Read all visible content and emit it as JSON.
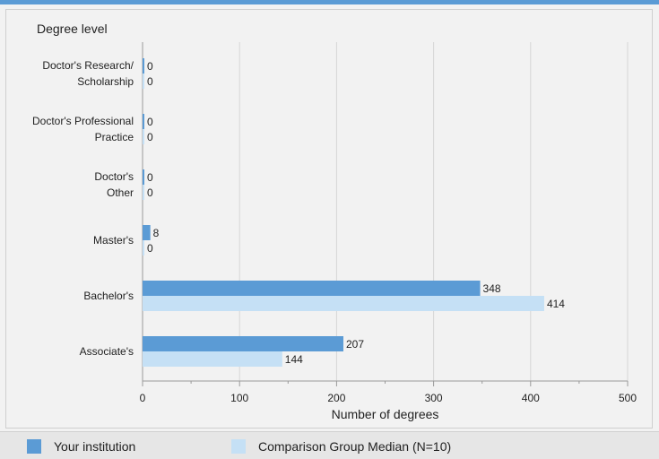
{
  "chart_data": {
    "type": "bar",
    "orientation": "horizontal",
    "title": "",
    "ylabel": "Degree level",
    "xlabel": "Number of degrees",
    "xlim": [
      0,
      500
    ],
    "xticks": [
      0,
      100,
      200,
      300,
      400,
      500
    ],
    "grid": true,
    "legend_position": "bottom",
    "categories": [
      [
        "Doctor's Research/",
        "Scholarship"
      ],
      [
        "Doctor's Professional",
        "Practice"
      ],
      [
        "Doctor's",
        "Other"
      ],
      [
        "Master's"
      ],
      [
        "Bachelor's"
      ],
      [
        "Associate's"
      ]
    ],
    "series": [
      {
        "name": "Your institution",
        "color": "#5b9bd5",
        "values": [
          0,
          0,
          0,
          8,
          348,
          207
        ]
      },
      {
        "name": "Comparison Group Median (N=10)",
        "color": "#c5e0f5",
        "values": [
          0,
          0,
          0,
          0,
          414,
          144
        ]
      }
    ]
  }
}
